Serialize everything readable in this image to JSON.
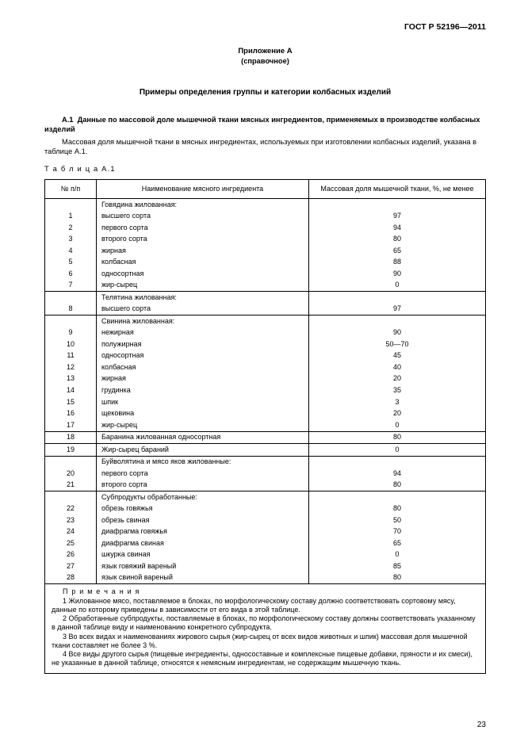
{
  "doc_id": "ГОСТ Р 52196—2011",
  "appendix_label": "Приложение А",
  "appendix_type": "(справочное)",
  "main_heading": "Примеры определения группы и категории колбасных изделий",
  "section_a1_num": "А.1",
  "section_a1_title": "Данные по массовой доле мышечной ткани мясных ингредиентов, применяемых в производстве колбасных изделий",
  "section_a1_para": "Массовая доля мышечной ткани в мясных ингредиентах, используемых при изготовлении колбасных изделий, указана в таблице А.1.",
  "table_label": "Т а б л и ц а  А.1",
  "col1": "№ п/п",
  "col2": "Наименование мясного ингредиента",
  "col3": "Массовая доля мышечной ткани, %, не менее",
  "groups": [
    {
      "header": "Говядина жилованная:",
      "rows": [
        {
          "n": "1",
          "name": "высшего сорта",
          "v": "97"
        },
        {
          "n": "2",
          "name": "первого сорта",
          "v": "94"
        },
        {
          "n": "3",
          "name": "второго сорта",
          "v": "80"
        },
        {
          "n": "4",
          "name": "жирная",
          "v": "65"
        },
        {
          "n": "5",
          "name": "колбасная",
          "v": "88"
        },
        {
          "n": "6",
          "name": "односортная",
          "v": "90"
        },
        {
          "n": "7",
          "name": "жир-сырец",
          "v": "0"
        }
      ]
    },
    {
      "header": "Телятина жилованная:",
      "rows": [
        {
          "n": "8",
          "name": "высшего сорта",
          "v": "97"
        }
      ]
    },
    {
      "header": "Свинина жилованная:",
      "rows": [
        {
          "n": "9",
          "name": "нежирная",
          "v": "90"
        },
        {
          "n": "10",
          "name": "полужирная",
          "v": "50—70"
        },
        {
          "n": "11",
          "name": "односортная",
          "v": "45"
        },
        {
          "n": "12",
          "name": "колбасная",
          "v": "40"
        },
        {
          "n": "13",
          "name": "жирная",
          "v": "20"
        },
        {
          "n": "14",
          "name": "грудинка",
          "v": "35"
        },
        {
          "n": "15",
          "name": "шпик",
          "v": "3"
        },
        {
          "n": "16",
          "name": "щековина",
          "v": "20"
        },
        {
          "n": "17",
          "name": "жир-сырец",
          "v": "0"
        }
      ]
    },
    {
      "header": "",
      "single": {
        "n": "18",
        "name": "Баранина жилованная односортная",
        "v": "80"
      }
    },
    {
      "header": "",
      "single": {
        "n": "19",
        "name": "Жир-сырец бараний",
        "v": "0"
      }
    },
    {
      "header": "Буйволятина и мясо яков жилованные:",
      "rows": [
        {
          "n": "20",
          "name": "первого сорта",
          "v": "94"
        },
        {
          "n": "21",
          "name": "второго сорта",
          "v": "80"
        }
      ]
    },
    {
      "header": "Субпродукты обработанные:",
      "rows": [
        {
          "n": "22",
          "name": "обрезь говяжья",
          "v": "80"
        },
        {
          "n": "23",
          "name": "обрезь свиная",
          "v": "50"
        },
        {
          "n": "24",
          "name": "диафрагма говяжья",
          "v": "70"
        },
        {
          "n": "25",
          "name": "диафрагма свиная",
          "v": "65"
        },
        {
          "n": "26",
          "name": "шкурка свиная",
          "v": "0"
        },
        {
          "n": "27",
          "name": "язык говяжий вареный",
          "v": "85"
        },
        {
          "n": "28",
          "name": "язык свиной вареный",
          "v": "80"
        }
      ]
    }
  ],
  "notes_label": "П р и м е ч а н и я",
  "notes": [
    "1  Жилованное мясо, поставляемое в блоках, по морфологическому составу должно соответствовать сортовому мясу, данные по которому приведены в зависимости от его вида в этой таблице.",
    "2  Обработанные субпродукты, поставляемые в блоках, по морфологическому составу должны соответствовать указанному в данной таблице виду и наименованию конкретного субпродукта.",
    "3  Во всех видах и наименованиях жирового сырья (жир-сырец от всех видов животных и шпик) массовая доля мышечной ткани составляет не более 3 %.",
    "4  Все виды другого сырья (пищевые ингредиенты, односоставные и комплексные пищевые добавки, пряности и их смеси), не указанные в данной таблице, относятся к немясным ингредиентам, не содержащим мышечную ткань."
  ],
  "page_num": "23"
}
